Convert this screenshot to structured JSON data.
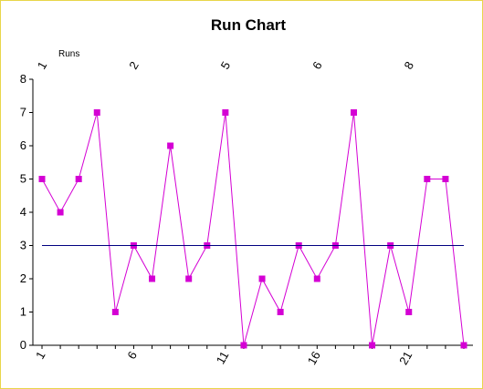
{
  "chart_data": {
    "type": "line",
    "title": "Run Chart",
    "top_axis_label": "Runs",
    "x": [
      1,
      2,
      3,
      4,
      5,
      6,
      7,
      8,
      9,
      10,
      11,
      12,
      13,
      14,
      15,
      16,
      17,
      18,
      19,
      20,
      21,
      22,
      23,
      24
    ],
    "series": [
      {
        "values": [
          5,
          4,
          5,
          7,
          1,
          3,
          2,
          6,
          2,
          3,
          7,
          0,
          2,
          1,
          3,
          2,
          3,
          7,
          0,
          3,
          1,
          5,
          5,
          0
        ],
        "color": "#d400d4",
        "marker": "square"
      },
      {
        "values": [
          3,
          3,
          3,
          3,
          3,
          3,
          3,
          3,
          3,
          3,
          3,
          3,
          3,
          3,
          3,
          3,
          3,
          3,
          3,
          3,
          3,
          3,
          3,
          3
        ],
        "color": "#000080",
        "marker": "none"
      }
    ],
    "x_ticks": [
      "1",
      "6",
      "11",
      "16",
      "21"
    ],
    "top_ticks": [
      "1",
      "2",
      "5",
      "6",
      "8"
    ],
    "ylim": [
      0,
      8
    ],
    "y_ticks": [
      "0",
      "1",
      "2",
      "3",
      "4",
      "5",
      "6",
      "7",
      "8"
    ],
    "grid": false,
    "legend": false
  }
}
